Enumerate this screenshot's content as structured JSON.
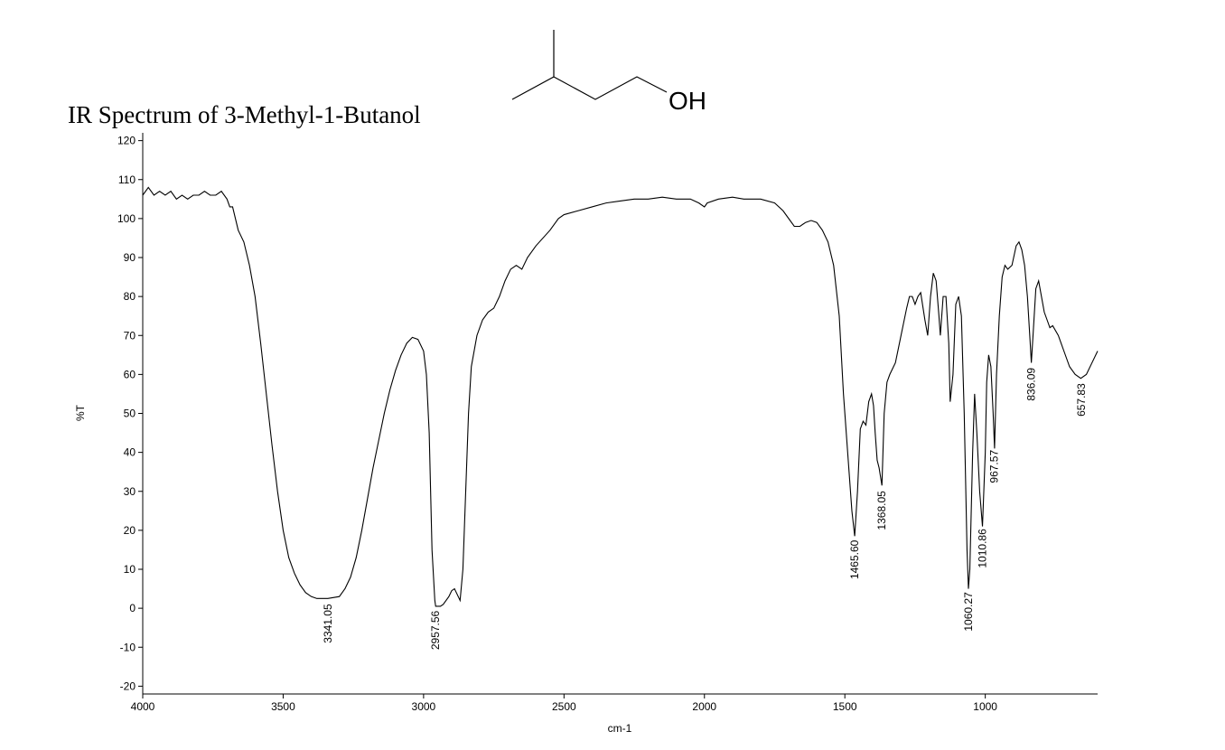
{
  "chart_data": {
    "type": "line",
    "title": "IR Spectrum of 3-Methyl-1-Butanol",
    "structure_label": "OH",
    "xlabel": "cm-1",
    "ylabel": "%T",
    "color": "#000000",
    "xlim": [
      4000,
      600
    ],
    "ylim": [
      -22,
      122
    ],
    "xticks": [
      4000,
      3500,
      3000,
      2500,
      2000,
      1500,
      1000
    ],
    "yticks": [
      -20,
      -10,
      0,
      10,
      20,
      30,
      40,
      50,
      60,
      70,
      80,
      90,
      100,
      110,
      120
    ],
    "x": [
      4000,
      3980,
      3960,
      3940,
      3920,
      3900,
      3880,
      3860,
      3840,
      3820,
      3800,
      3780,
      3760,
      3740,
      3720,
      3700,
      3690,
      3680,
      3660,
      3640,
      3620,
      3600,
      3580,
      3560,
      3540,
      3520,
      3500,
      3480,
      3460,
      3440,
      3420,
      3400,
      3380,
      3341,
      3300,
      3280,
      3260,
      3240,
      3220,
      3200,
      3180,
      3160,
      3140,
      3120,
      3100,
      3080,
      3060,
      3040,
      3020,
      3000,
      2990,
      2980,
      2970,
      2960,
      2957,
      2940,
      2930,
      2910,
      2900,
      2890,
      2870,
      2860,
      2850,
      2840,
      2830,
      2810,
      2790,
      2770,
      2750,
      2730,
      2710,
      2690,
      2670,
      2650,
      2630,
      2600,
      2550,
      2520,
      2500,
      2450,
      2400,
      2350,
      2300,
      2250,
      2200,
      2150,
      2100,
      2050,
      2020,
      2000,
      1990,
      1950,
      1900,
      1860,
      1800,
      1750,
      1720,
      1700,
      1680,
      1660,
      1640,
      1620,
      1600,
      1580,
      1560,
      1540,
      1520,
      1505,
      1495,
      1485,
      1475,
      1465,
      1455,
      1445,
      1435,
      1425,
      1415,
      1405,
      1398,
      1392,
      1385,
      1378,
      1368,
      1360,
      1350,
      1340,
      1320,
      1300,
      1280,
      1270,
      1260,
      1250,
      1240,
      1230,
      1215,
      1205,
      1195,
      1185,
      1175,
      1165,
      1160,
      1150,
      1140,
      1130,
      1125,
      1115,
      1105,
      1095,
      1085,
      1075,
      1065,
      1060,
      1055,
      1045,
      1038,
      1030,
      1020,
      1010,
      1000,
      995,
      988,
      980,
      972,
      967,
      960,
      950,
      940,
      930,
      920,
      905,
      890,
      880,
      870,
      860,
      850,
      840,
      836,
      830,
      820,
      810,
      800,
      790,
      780,
      770,
      760,
      740,
      720,
      700,
      680,
      660,
      640,
      620,
      600
    ],
    "values": [
      106,
      108,
      106,
      107,
      106,
      107,
      105,
      106,
      105,
      106,
      106,
      107,
      106,
      106,
      107,
      105,
      103,
      103,
      97,
      94,
      88,
      80,
      68,
      55,
      42,
      30,
      20,
      13,
      9,
      6,
      4,
      3,
      2.5,
      2.5,
      3,
      5,
      8,
      13,
      20,
      28,
      36,
      43,
      50,
      56,
      61,
      65,
      68,
      69.5,
      69,
      66,
      60,
      45,
      15,
      2,
      0.5,
      0.5,
      1,
      3,
      4.5,
      5,
      2,
      10,
      30,
      50,
      62,
      70,
      74,
      76,
      77,
      80,
      84,
      87,
      88,
      87,
      90,
      93,
      97,
      100,
      101,
      102,
      103,
      104,
      104.5,
      105,
      105,
      105.5,
      105,
      105,
      104,
      103,
      104,
      105,
      105.5,
      105,
      105,
      104,
      102,
      100,
      98,
      98,
      99,
      99.5,
      99,
      97,
      94,
      88,
      75,
      55,
      45,
      35,
      25,
      18.5,
      30,
      46,
      48,
      47,
      53,
      55,
      52,
      45,
      38,
      36,
      31.5,
      50,
      58,
      60,
      63,
      70,
      77,
      80,
      80,
      78,
      80,
      81,
      74,
      70,
      80,
      86,
      84,
      75,
      70,
      80,
      80,
      68,
      53,
      60,
      78,
      80,
      75,
      50,
      15,
      5,
      10,
      40,
      55,
      45,
      30,
      21,
      40,
      58,
      65,
      62,
      50,
      41,
      60,
      75,
      85,
      88,
      87,
      88,
      93,
      94,
      92,
      88,
      80,
      68,
      63,
      70,
      82,
      84,
      80,
      76,
      74,
      72,
      72.5,
      70,
      66,
      62,
      60,
      59,
      60,
      63,
      66
    ],
    "peak_labels": [
      3341.05,
      2957.56,
      {
        "value": 1465.6,
        "label": "1465.60"
      },
      1368.05,
      1060.27,
      1010.86,
      967.57,
      836.09,
      657.83
    ]
  }
}
